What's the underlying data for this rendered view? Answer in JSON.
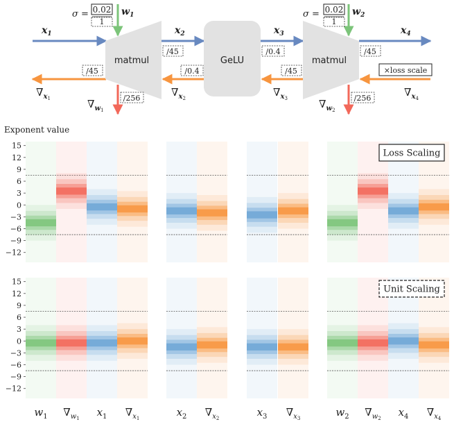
{
  "diagram": {
    "sigma1": {
      "label": "σ =",
      "num": "0.02",
      "den": "1"
    },
    "sigma2": {
      "label": "σ =",
      "num": "0.02",
      "den": "1"
    },
    "w1": "w",
    "w1_sub": "1",
    "w2": "w",
    "w2_sub": "2",
    "x1": "x",
    "x1_sub": "1",
    "x2": "x",
    "x2_sub": "2",
    "x3": "x",
    "x3_sub": "3",
    "x4": "x",
    "x4_sub": "4",
    "g_x1": "∇",
    "g_x1_sub": "x",
    "g_x1_subsub": "1",
    "g_w1": "∇",
    "g_w1_sub": "w",
    "g_w1_subsub": "1",
    "g_x2": "∇",
    "g_x2_sub": "x",
    "g_x2_subsub": "2",
    "g_x3": "∇",
    "g_x3_sub": "x",
    "g_x3_subsub": "3",
    "g_w2": "∇",
    "g_w2_sub": "w",
    "g_w2_subsub": "2",
    "g_x4": "∇",
    "g_x4_sub": "x",
    "g_x4_subsub": "4",
    "matmul1": "matmul",
    "gelu": "GeLU",
    "matmul2": "matmul",
    "s_fwd_mm1": "/45",
    "s_fwd_gelu": "/0.4",
    "s_fwd_mm2": "/45",
    "s_bwd_x1": "/45",
    "s_bwd_gelu": "/0.4",
    "s_bwd_mm2": "/45",
    "s_bwd_w1": "/256",
    "s_bwd_w2": "/256",
    "loss_scale": "×loss scale"
  },
  "chart_data": {
    "type": "heatmap",
    "ylabel": "Exponent value",
    "yticks": [
      15,
      12,
      9,
      6,
      3,
      0,
      -3,
      -6,
      -9,
      -12
    ],
    "ylim": [
      -14.5,
      16
    ],
    "dashed_lines": [
      7.5,
      -7.5
    ],
    "column_labels": [
      {
        "sym": "w",
        "sub": "1",
        "grad": false
      },
      {
        "sym": "∇",
        "sub": "w",
        "subsub": "1",
        "grad": true
      },
      {
        "sym": "x",
        "sub": "1",
        "grad": false
      },
      {
        "sym": "∇",
        "sub": "x",
        "subsub": "1",
        "grad": true
      },
      {
        "sym": "x",
        "sub": "2",
        "grad": false
      },
      {
        "sym": "∇",
        "sub": "x",
        "subsub": "2",
        "grad": true
      },
      {
        "sym": "x",
        "sub": "3",
        "grad": false
      },
      {
        "sym": "∇",
        "sub": "x",
        "subsub": "3",
        "grad": true
      },
      {
        "sym": "w",
        "sub": "2",
        "grad": false
      },
      {
        "sym": "∇",
        "sub": "w",
        "subsub": "2",
        "grad": true
      },
      {
        "sym": "x",
        "sub": "4",
        "grad": false
      },
      {
        "sym": "∇",
        "sub": "x",
        "subsub": "4",
        "grad": true
      }
    ],
    "column_kinds": [
      "weight",
      "wgrad",
      "act",
      "grad",
      "act",
      "grad",
      "act",
      "grad",
      "weight",
      "wgrad",
      "act",
      "grad"
    ],
    "groups": [
      [
        0,
        1,
        2,
        3
      ],
      [
        4,
        5
      ],
      [
        6,
        7
      ],
      [
        8,
        9,
        10,
        11
      ]
    ],
    "colors": {
      "weight": "#7cc47a",
      "wgrad": "#f2685a",
      "act": "#6fa6d6",
      "grad": "#f7953f"
    },
    "panels": [
      {
        "label": "Loss Scaling",
        "label_style": "solid",
        "centers": [
          -4.5,
          3.5,
          -0.5,
          -1.0,
          -1.5,
          -2.0,
          -2.5,
          -1.5,
          -4.5,
          3.5,
          -1.5,
          -0.5
        ]
      },
      {
        "label": "Unit Scaling",
        "label_style": "dashed",
        "centers": [
          -0.5,
          -0.5,
          -0.5,
          0.0,
          -1.5,
          -1.0,
          -1.5,
          -1.5,
          -0.5,
          -0.5,
          0.0,
          -1.0
        ]
      }
    ]
  }
}
